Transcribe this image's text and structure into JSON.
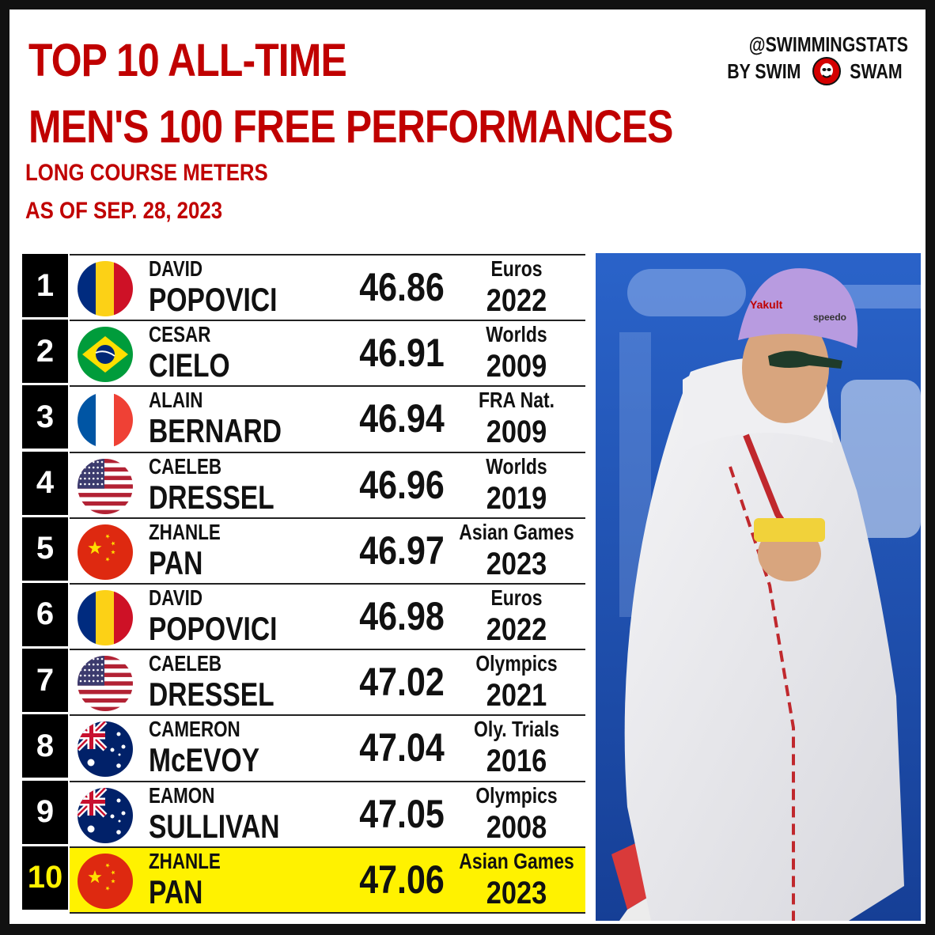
{
  "header": {
    "title_line1": "TOP 10 ALL-TIME",
    "title_line2": "MEN'S 100 FREE PERFORMANCES",
    "subtitle_line1": "LONG COURSE METERS",
    "subtitle_line2": "AS OF SEP. 28, 2023"
  },
  "brand": {
    "handle": "@SWIMMINGSTATS",
    "by_left": "BY SWIM",
    "by_right": "SWAM",
    "logo_icon": "swimswam-logo-icon"
  },
  "rows": [
    {
      "rank": "1",
      "first": "DAVID",
      "last": "POPOVICI",
      "time": "46.86",
      "meet": "Euros",
      "year": "2022",
      "flag": "romania"
    },
    {
      "rank": "2",
      "first": "CESAR",
      "last": "CIELO",
      "time": "46.91",
      "meet": "Worlds",
      "year": "2009",
      "flag": "brazil"
    },
    {
      "rank": "3",
      "first": "ALAIN",
      "last": "BERNARD",
      "time": "46.94",
      "meet": "FRA Nat.",
      "year": "2009",
      "flag": "france"
    },
    {
      "rank": "4",
      "first": "CAELEB",
      "last": "DRESSEL",
      "time": "46.96",
      "meet": "Worlds",
      "year": "2019",
      "flag": "usa"
    },
    {
      "rank": "5",
      "first": "ZHANLE",
      "last": "PAN",
      "time": "46.97",
      "meet": "Asian Games",
      "year": "2023",
      "flag": "china"
    },
    {
      "rank": "6",
      "first": "DAVID",
      "last": "POPOVICI",
      "time": "46.98",
      "meet": "Euros",
      "year": "2022",
      "flag": "romania"
    },
    {
      "rank": "7",
      "first": "CAELEB",
      "last": "DRESSEL",
      "time": "47.02",
      "meet": "Olympics",
      "year": "2021",
      "flag": "usa"
    },
    {
      "rank": "8",
      "first": "CAMERON",
      "last": "McEVOY",
      "time": "47.04",
      "meet": "Oly. Trials",
      "year": "2016",
      "flag": "australia"
    },
    {
      "rank": "9",
      "first": "EAMON",
      "last": "SULLIVAN",
      "time": "47.05",
      "meet": "Olympics",
      "year": "2008",
      "flag": "australia"
    },
    {
      "rank": "10",
      "first": "ZHANLE",
      "last": "PAN",
      "time": "47.06",
      "meet": "Asian Games",
      "year": "2023",
      "flag": "china",
      "highlight": true
    }
  ],
  "colors": {
    "title_red": "#c00000",
    "highlight_yellow": "#fff200",
    "rank_bg": "#000000"
  },
  "photo": {
    "cap_text": "Yakult",
    "cap_brand": "speedo"
  }
}
